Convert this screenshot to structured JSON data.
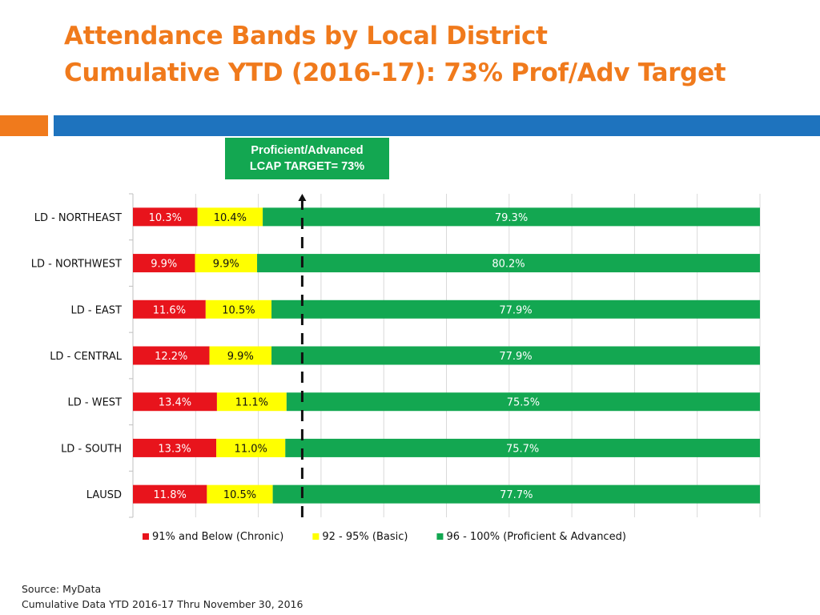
{
  "slide": {
    "title_line1": "Attendance Bands by Local District",
    "title_line2": "Cumulative YTD (2016-17): 73% Prof/Adv Target",
    "target_box_line1": "Proficient/Advanced",
    "target_box_line2": "LCAP TARGET= 73%",
    "source_line1": "Source: MyData",
    "source_line2": "Cumulative Data  YTD 2016-17 Thru November 30, 2016"
  },
  "chart_data": {
    "type": "bar",
    "orientation": "horizontal",
    "stacked": true,
    "categories": [
      "LD - NORTHEAST",
      "LD - NORTHWEST",
      "LD - EAST",
      "LD - CENTRAL",
      "LD - WEST",
      "LD - SOUTH",
      "LAUSD"
    ],
    "series": [
      {
        "name": "91% and Below (Chronic)",
        "color": "#e8141c",
        "values": [
          10.3,
          9.9,
          11.6,
          12.2,
          13.4,
          13.3,
          11.8
        ],
        "labels": [
          "10.3%",
          "9.9%",
          "11.6%",
          "12.2%",
          "13.4%",
          "13.3%",
          "11.8%"
        ]
      },
      {
        "name": "92 - 95% (Basic)",
        "color": "#ffff00",
        "values": [
          10.4,
          9.9,
          10.5,
          9.9,
          11.1,
          11.0,
          10.5
        ],
        "labels": [
          "10.4%",
          "9.9%",
          "10.5%",
          "9.9%",
          "11.1%",
          "11.0%",
          "10.5%"
        ]
      },
      {
        "name": "96 - 100% (Proficient & Advanced)",
        "color": "#13a751",
        "values": [
          79.3,
          80.2,
          77.9,
          77.9,
          75.5,
          75.7,
          77.7
        ],
        "labels": [
          "79.3%",
          "80.2%",
          "77.9%",
          "77.9%",
          "75.5%",
          "75.7%",
          "77.7%"
        ]
      }
    ],
    "xlim": [
      0,
      100
    ],
    "target_line": 27,
    "grid": true,
    "legend": "bottom"
  }
}
